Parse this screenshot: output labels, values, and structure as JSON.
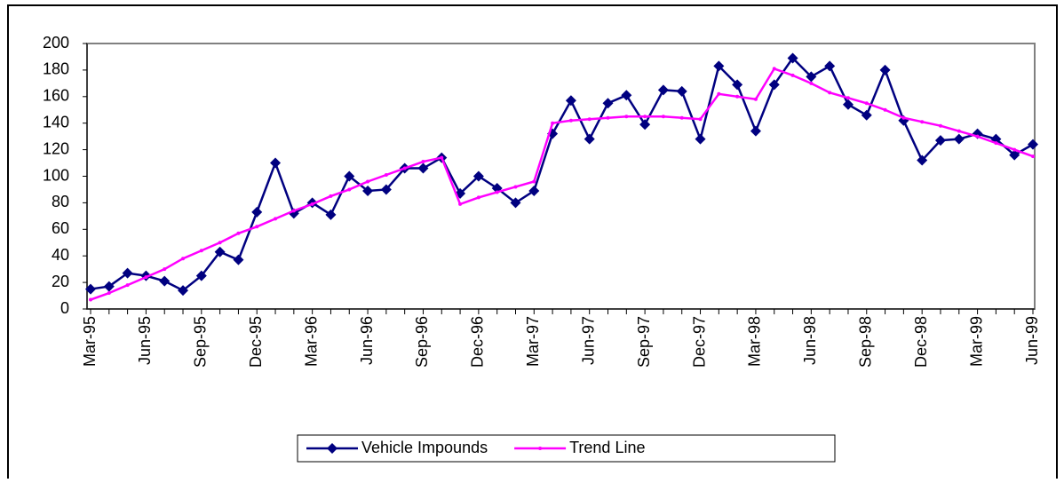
{
  "chart_data": {
    "type": "line",
    "categories": [
      "Mar-95",
      null,
      null,
      "Jun-95",
      null,
      null,
      "Sep-95",
      null,
      null,
      "Dec-95",
      null,
      null,
      "Mar-96",
      null,
      null,
      "Jun-96",
      null,
      null,
      "Sep-96",
      null,
      null,
      "Dec-96",
      null,
      null,
      "Mar-97",
      null,
      null,
      "Jun-97",
      null,
      null,
      "Sep-97",
      null,
      null,
      "Dec-97",
      null,
      null,
      "Mar-98",
      null,
      null,
      "Jun-98",
      null,
      null,
      "Sep-98",
      null,
      null,
      "Dec-98",
      null,
      null,
      "Mar-99",
      null,
      null,
      "Jun-99"
    ],
    "series": [
      {
        "name": "Vehicle Impounds",
        "color": "#000080",
        "marker": "diamond",
        "values": [
          15,
          17,
          27,
          25,
          21,
          14,
          25,
          43,
          37,
          73,
          110,
          72,
          80,
          71,
          100,
          89,
          90,
          106,
          106,
          114,
          87,
          100,
          91,
          80,
          89,
          132,
          157,
          128,
          155,
          161,
          139,
          165,
          164,
          128,
          183,
          169,
          134,
          169,
          189,
          175,
          183,
          154,
          146,
          180,
          142,
          112,
          127,
          128,
          132,
          128,
          116,
          124
        ]
      },
      {
        "name": "Trend Line",
        "color": "#ff00ff",
        "marker": "dot",
        "values": [
          7,
          12,
          18,
          24,
          30,
          38,
          44,
          50,
          57,
          62,
          68,
          74,
          79,
          85,
          90,
          96,
          101,
          106,
          111,
          114,
          79,
          84,
          88,
          92,
          96,
          140,
          142,
          143,
          144,
          145,
          145,
          145,
          144,
          143,
          162,
          160,
          158,
          181,
          176,
          170,
          163,
          159,
          155,
          150,
          144,
          141,
          138,
          134,
          130,
          125,
          120,
          115
        ]
      }
    ],
    "ylim": [
      0,
      200
    ],
    "yticks": [
      0,
      20,
      40,
      60,
      80,
      100,
      120,
      140,
      160,
      180,
      200
    ],
    "grid": false,
    "legend": "bottom"
  }
}
